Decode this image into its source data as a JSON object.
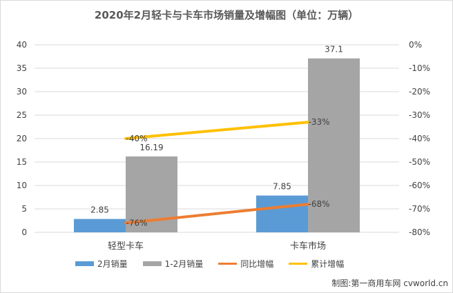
{
  "chart_data": {
    "type": "bar",
    "title": "2020年2月轻卡与卡车市场销量及增幅图（单位：万辆）",
    "categories": [
      "轻型卡车",
      "卡车市场"
    ],
    "bar_series": [
      {
        "name": "2月销量",
        "values": [
          2.85,
          7.85
        ],
        "labels": [
          "2.85",
          "7.85"
        ],
        "color": "#5b9bd5"
      },
      {
        "name": "1-2月销量",
        "values": [
          16.19,
          37.1
        ],
        "labels": [
          "16.19",
          "37.1"
        ],
        "color": "#a5a5a5"
      }
    ],
    "line_series": [
      {
        "name": "同比增幅",
        "values": [
          -76,
          -68
        ],
        "labels": [
          "-76%",
          "-68%"
        ],
        "color": "#ed7d31"
      },
      {
        "name": "累计增幅",
        "values": [
          -40,
          -33
        ],
        "labels": [
          "-40%",
          "-33%"
        ],
        "color": "#ffc000"
      }
    ],
    "y_left": {
      "min": 0,
      "max": 40,
      "ticks": [
        "0",
        "5",
        "10",
        "15",
        "20",
        "25",
        "30",
        "35",
        "40"
      ]
    },
    "y_right": {
      "min": -80,
      "max": 0,
      "ticks": [
        "-80%",
        "-70%",
        "-60%",
        "-50%",
        "-40%",
        "-30%",
        "-20%",
        "-10%",
        "0%"
      ]
    },
    "grid": true,
    "legend_position": "bottom"
  },
  "credit": "制图:第一商用车网 cvworld.cn"
}
